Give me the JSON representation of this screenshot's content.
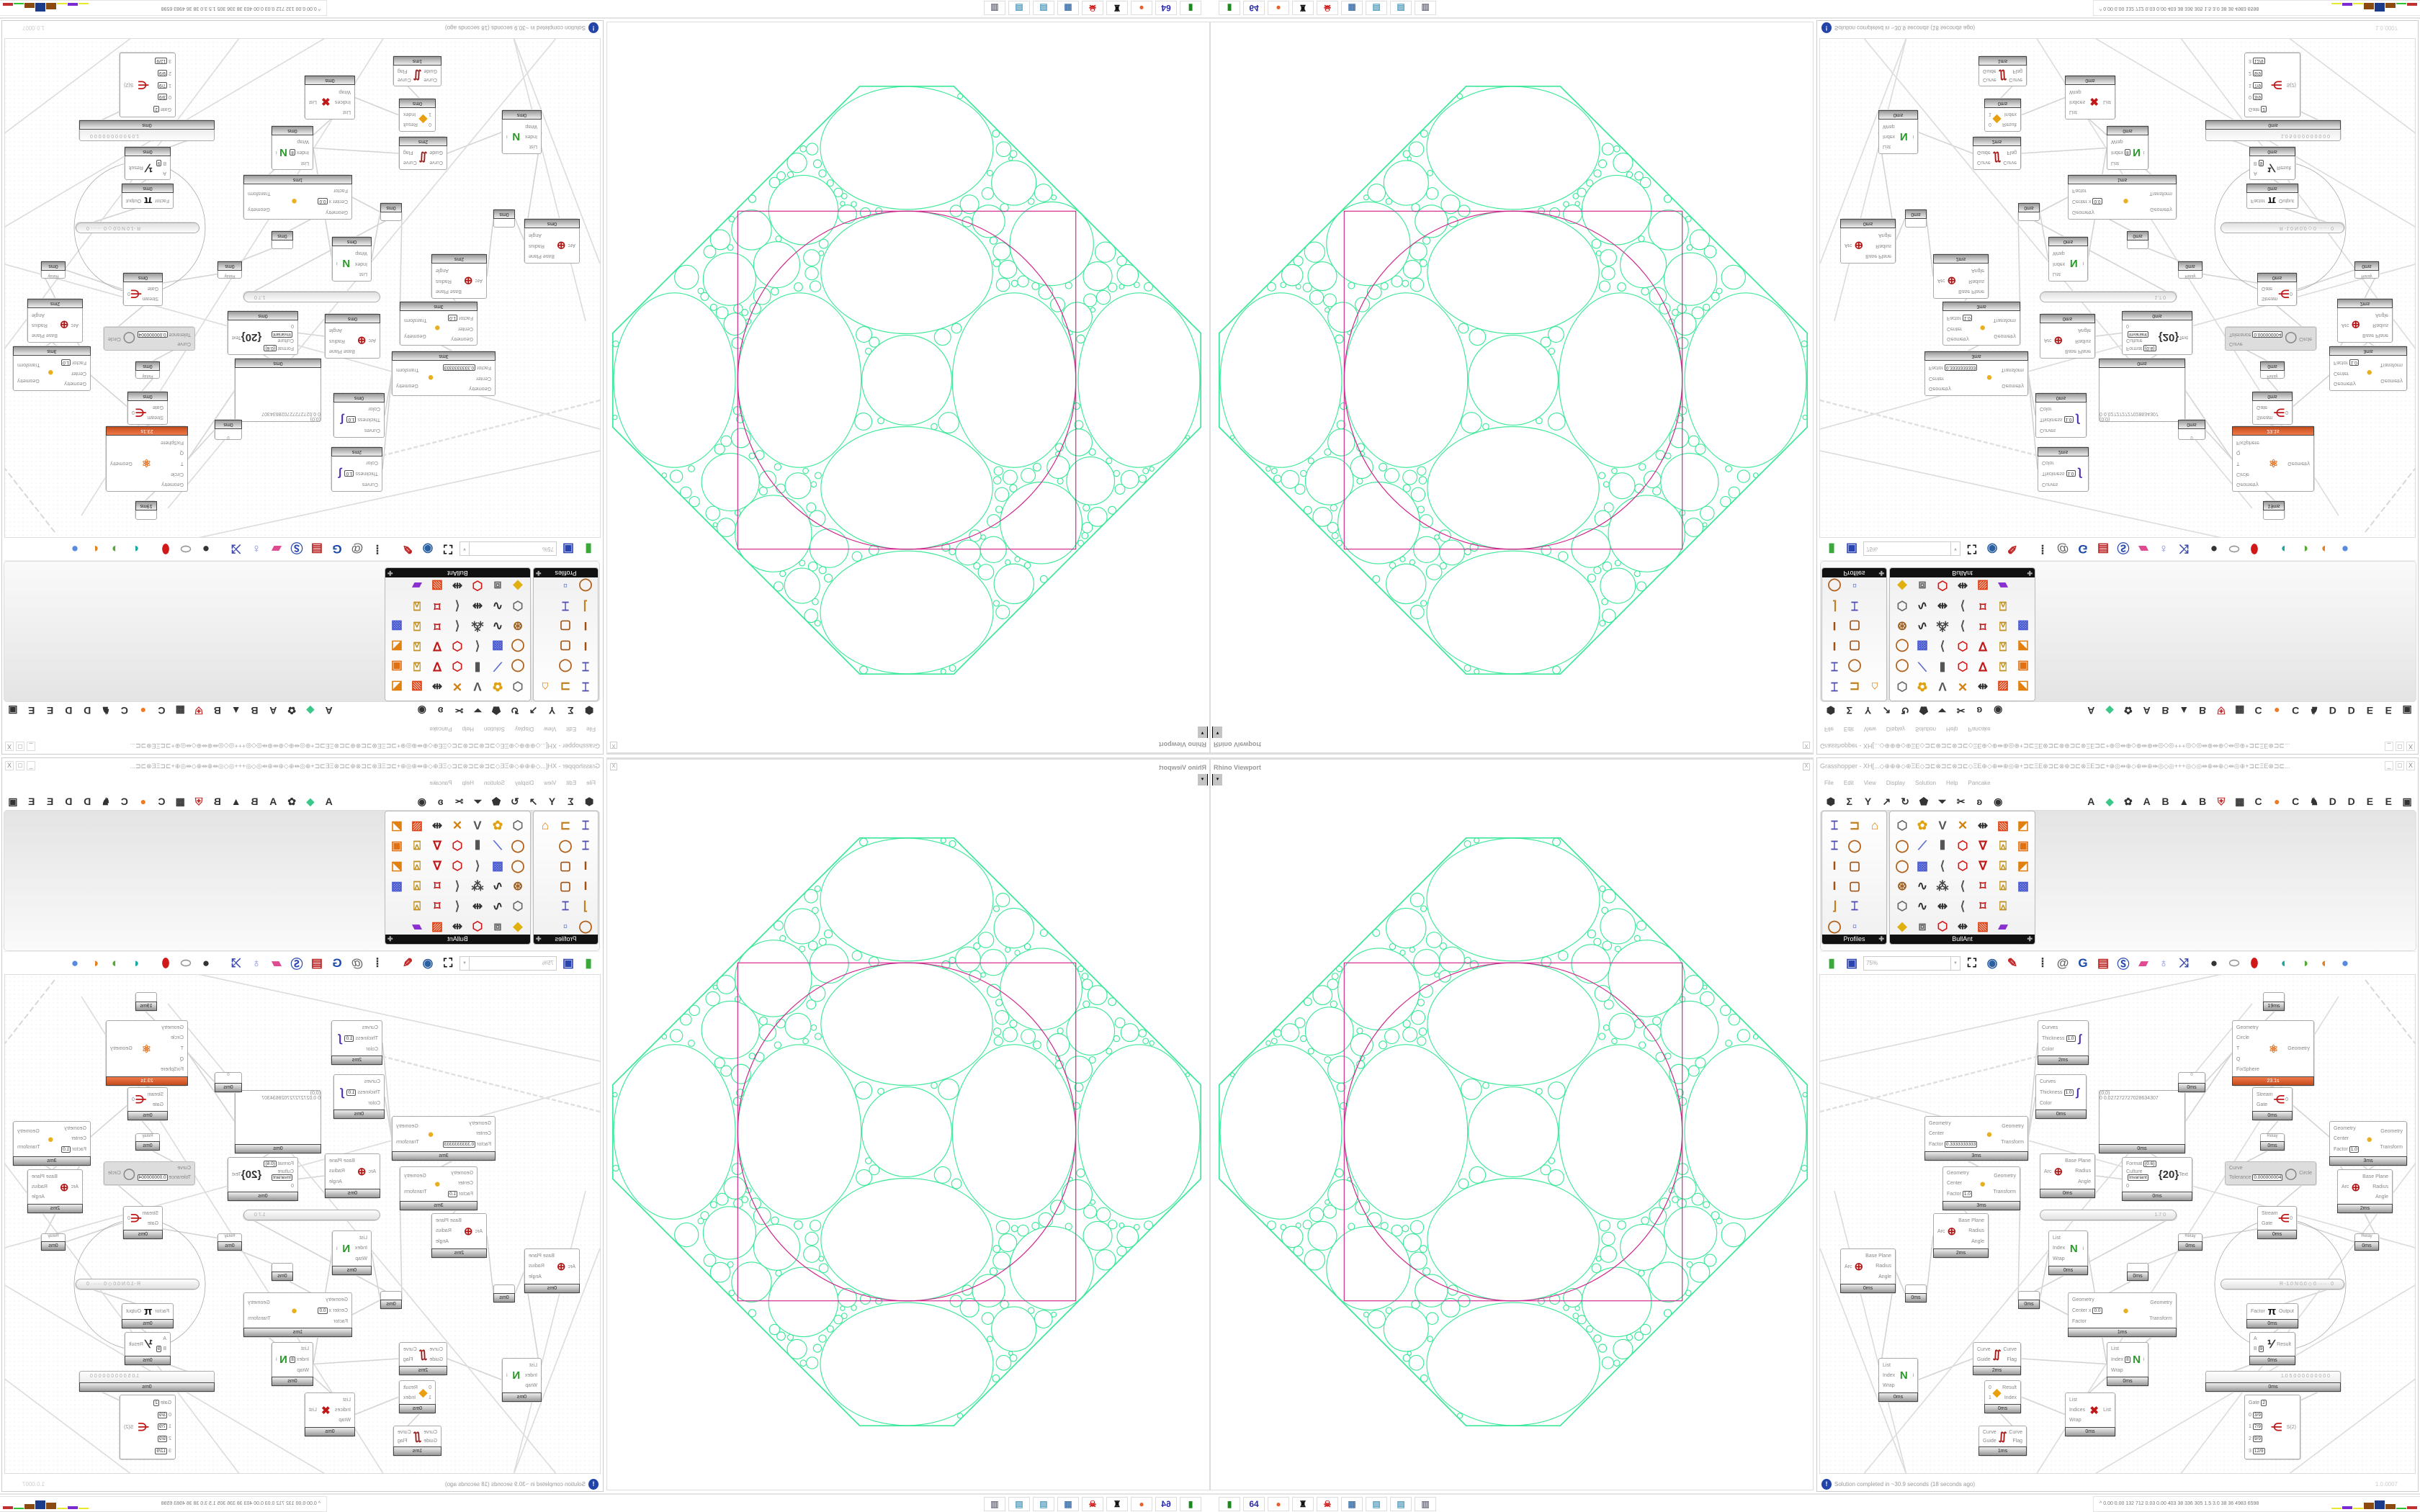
{
  "viewport": {
    "title": "Rhino Viewport",
    "close": "X",
    "dropdown": "▾",
    "line_color": "#3ee89a",
    "accent_color": "#d0208a"
  },
  "grasshopper": {
    "title": "Grasshopper - XH[...◇⊕⊕⊕◇⊕ΞΕ◇⊐⊏⊗⊐⊏⊗⊐⊏◇ΞΕ⊕◇⊕⇹⊕◎⊕+⊐⊏ΞΕ⊗⊐⊏⊗⊕⊐⊏⊗ΞΕ⊐⊏+⊕◎⇹⊕◇⊕⇹⊕⇹◎◇◎+++◎◇◎⇹⊕⇹⊕◇⇹◎⊕+⊐⊏ΞΕ⊗⊐⊏...",
    "window_buttons": [
      "_",
      "□",
      "X"
    ],
    "menu": [
      "File",
      "Edit",
      "View",
      "Display",
      "Solution",
      "Help",
      "Pancake"
    ],
    "tab_icons": [
      {
        "name": "hexagon-icon",
        "g": "⬢"
      },
      {
        "name": "sigma-icon",
        "g": "Σ"
      },
      {
        "name": "fork-icon",
        "g": "Y"
      },
      {
        "name": "arrow-icon",
        "g": "↗"
      },
      {
        "name": "loop-icon",
        "g": "↻"
      },
      {
        "name": "pentagon-icon",
        "g": "⬟"
      },
      {
        "name": "triangle-icon",
        "g": "⏷"
      },
      {
        "name": "scissors-icon",
        "g": "✂"
      },
      {
        "name": "swirl-icon",
        "g": "ʚ"
      },
      {
        "name": "eye-icon",
        "g": "◉"
      },
      {
        "name": "spacer",
        "g": ""
      },
      {
        "name": "spacer",
        "g": ""
      },
      {
        "name": "spacer",
        "g": ""
      },
      {
        "name": "spacer",
        "g": ""
      },
      {
        "name": "letter-a-icon",
        "g": "A"
      },
      {
        "name": "crystal-icon",
        "g": "◆"
      },
      {
        "name": "gear-flower-icon",
        "g": "✿"
      },
      {
        "name": "letter-a-icon",
        "g": "A"
      },
      {
        "name": "letter-b-icon",
        "g": "B"
      },
      {
        "name": "mountain-icon",
        "g": "▲"
      },
      {
        "name": "letter-b-icon",
        "g": "B"
      },
      {
        "name": "shield-icon",
        "g": "⛨"
      },
      {
        "name": "grid-icon",
        "g": "▦"
      },
      {
        "name": "letter-c-icon",
        "g": "C"
      },
      {
        "name": "orange-dot-icon",
        "g": "●"
      },
      {
        "name": "letter-c-icon",
        "g": "C"
      },
      {
        "name": "rooster-icon",
        "g": "♞"
      },
      {
        "name": "letter-d-icon",
        "g": "D"
      },
      {
        "name": "letter-d-icon",
        "g": "D"
      },
      {
        "name": "letter-e-icon",
        "g": "E"
      },
      {
        "name": "letter-e-icon",
        "g": "E"
      },
      {
        "name": "matrix-icon",
        "g": "▣"
      }
    ],
    "palettes": [
      {
        "label": "Profiles",
        "cols": 3,
        "icons": [
          "ibeam-label",
          "c-channel",
          "hat-section",
          "ibeam-label",
          "ring",
          "",
          "i-section",
          "rect-hollow",
          "",
          "i-section",
          "rect-hollow",
          "",
          "angle",
          "ibeam-label",
          "",
          "ring",
          "small-squares",
          ""
        ]
      },
      {
        "label": "BullAnt",
        "cols": 7,
        "icons": [
          "box",
          "flower",
          "v-lines",
          "tri-point",
          "dim-arrows",
          "sheet-red",
          "sheet-gradient",
          "ring",
          "plane-blue",
          "columns",
          "red-hex",
          "v-red",
          "lock-frame",
          "frame-orange",
          "ring",
          "cube-blue",
          "polyline",
          "red-hex",
          "v-red",
          "lock-frame",
          "sheet-gradient",
          "sphere-ring",
          "curve",
          "star-dots",
          "polyline",
          "frame-red",
          "lock-frame",
          "cube-blue",
          "box",
          "curve",
          "dim-arrows",
          "polyline",
          "frame-red",
          "lock-frame",
          "",
          "diamond-yellow",
          "panel-frame",
          "red-hex",
          "dim-arrows",
          "sheet-red",
          "rainbow",
          ""
        ]
      }
    ],
    "canvas_toolbar": {
      "zoom": "75%",
      "icons": [
        {
          "name": "new-file-icon",
          "g": "▮",
          "c": "#3aa83a"
        },
        {
          "name": "save-icon",
          "g": "▣",
          "c": "#2a44b0"
        },
        {
          "name": "zoom-field",
          "g": ""
        },
        {
          "name": "zoom-extents-icon",
          "g": "⛶",
          "c": "#111"
        },
        {
          "name": "preview-eye-icon",
          "g": "◉",
          "c": "#2a5fa0"
        },
        {
          "name": "sketch-icon",
          "g": "✎",
          "c": "#c02020"
        },
        {
          "name": "bracket-icon",
          "g": "⦙",
          "c": "#333"
        },
        {
          "name": "at-icon",
          "g": "@",
          "c": "#666"
        },
        {
          "name": "gha-icon",
          "g": "G",
          "c": "#1b4aa8"
        },
        {
          "name": "window-icon",
          "g": "▤",
          "c": "#b22"
        },
        {
          "name": "search-icon",
          "g": "Ⓢ",
          "c": "#2a4ab0"
        },
        {
          "name": "package-icon",
          "g": "▰",
          "c": "#e04a90"
        },
        {
          "name": "bulb-icon",
          "g": "♁",
          "c": "#7a8ae0"
        },
        {
          "name": "twist-icon",
          "g": "⤨",
          "c": "#3a4ab0"
        },
        {
          "name": "bomb-icon",
          "g": "●",
          "c": "#333"
        },
        {
          "name": "cylinder-icon",
          "g": "⬭",
          "c": "#999"
        },
        {
          "name": "red-cylinder-icon",
          "g": "⬮",
          "c": "#d01818"
        },
        {
          "name": "teal-shape-icon",
          "g": "◐",
          "c": "#18a8a0"
        },
        {
          "name": "green-shape-icon",
          "g": "◑",
          "c": "#58a838"
        },
        {
          "name": "orange-sphere-icon",
          "g": "◐",
          "c": "#e08020"
        },
        {
          "name": "blue-sphere-icon",
          "g": "●",
          "c": "#5a8ae0"
        }
      ]
    },
    "nodes": [
      {
        "t": "comp",
        "in": [
          "Curves",
          [
            "Thickness",
            "1.0"
          ],
          "Color"
        ],
        "out": [],
        "ico": "∫",
        "ic": "#4a2ab0",
        "ft": "2ms"
      },
      {
        "t": "comp",
        "in": [
          "Curves",
          [
            "Thickness",
            "1.0"
          ],
          "Color"
        ],
        "out": [],
        "ico": "∫",
        "ic": "#4a2ab0",
        "ft": "0ms"
      },
      {
        "t": "comp",
        "in": [
          "Geometry",
          "Center",
          [
            "Factor",
            "0.3333333333"
          ]
        ],
        "out": [
          "Geometry",
          "Transform"
        ],
        "ico": "●",
        "ic": "#e8b020",
        "ft": "3ms"
      },
      {
        "t": "comp",
        "in": [
          "Geometry",
          "Center",
          [
            "Factor",
            "1.0"
          ]
        ],
        "out": [
          "Geometry",
          "Transform"
        ],
        "ico": "●",
        "ic": "#e8b020",
        "ft": "3ms"
      },
      {
        "t": "comp",
        "in": [
          "Arc"
        ],
        "out": [
          "Base Plane",
          "Radius",
          "Angle"
        ],
        "ico": "⊕",
        "ic": "#b01818",
        "ft": "2ms"
      },
      {
        "t": "comp",
        "in": [
          "Arc"
        ],
        "out": [
          "Base Plane",
          "Radius",
          "Angle"
        ],
        "ico": "⊕",
        "ic": "#b01818",
        "ft": "0ms"
      },
      {
        "t": "relay",
        "ft": "0ms"
      },
      {
        "t": "relay",
        "ft": "0ms"
      },
      {
        "t": "comp",
        "in": [
          "Arc"
        ],
        "out": [
          "Base Plane",
          "Radius",
          "Angle"
        ],
        "ico": "⊕",
        "ic": "#b01818",
        "ft": "0ms"
      },
      {
        "t": "comp",
        "in": [
          [
            "Format",
            "{0.6}"
          ],
          [
            "Culture",
            "Invariant"
          ],
          "0"
        ],
        "out": [
          "Text"
        ],
        "ico": "{20}",
        "ic": "#333",
        "ft": "0ms"
      },
      {
        "t": "panel",
        "hd": "(0;0)",
        "ct": "0  0.027272727028634307",
        "ft": "0ms"
      },
      {
        "t": "relay",
        "label": "0",
        "ft": "0ms"
      },
      {
        "t": "comp",
        "in": [
          "Geometry",
          "Circle",
          "T",
          "Q",
          "FixSphere"
        ],
        "out": [
          "Geometry"
        ],
        "ico": "⚛",
        "ic": "#e07020",
        "ft": "23.1s",
        "orange": true
      },
      {
        "t": "relay",
        "ft": "19ms"
      },
      {
        "t": "comp",
        "in": [
          "Stream",
          "Gate"
        ],
        "out": [
          "0"
        ],
        "ico": "⋲",
        "ic": "#c01818",
        "ft": "0ms"
      },
      {
        "t": "relay",
        "label": "Relay",
        "ft": "0ms"
      },
      {
        "t": "comp",
        "in": [
          "Geometry",
          "Center",
          [
            "Factor",
            "1.0"
          ]
        ],
        "out": [
          "Geometry",
          "Transform"
        ],
        "ico": "●",
        "ic": "#e8b020",
        "ft": "3ms"
      },
      {
        "t": "comp",
        "dis": true,
        "in": [
          "Curve",
          [
            "Tolerance",
            "0.000000004"
          ]
        ],
        "out": [
          "Circle"
        ],
        "ico": "◯",
        "ic": "#888"
      },
      {
        "t": "comp",
        "in": [
          "Arc"
        ],
        "out": [
          "Base Plane",
          "Radius",
          "Angle"
        ],
        "ico": "⊕",
        "ic": "#b01818",
        "ft": "2ms"
      },
      {
        "t": "comp",
        "in": [
          "Stream",
          "Gate"
        ],
        "out": [
          "0"
        ],
        "ico": "⋲",
        "ic": "#c01818",
        "ft": "0ms"
      },
      {
        "t": "relay",
        "label": "Relay",
        "ft": "0ms"
      },
      {
        "t": "relay",
        "label": "Relay",
        "ft": "0ms"
      },
      {
        "t": "slider",
        "v": "1.7  0"
      },
      {
        "t": "comp",
        "in": [
          "List",
          "Index",
          "Wrap"
        ],
        "out": [
          "i"
        ],
        "ico": "N",
        "ic": "#2a9a2a",
        "ft": "0ms"
      },
      {
        "t": "relay",
        "ft": "0ms"
      },
      {
        "t": "slider",
        "v": "R -1.0  N 0.0  ◇ 0  ·······  0"
      },
      {
        "t": "comp",
        "in": [
          "Factor"
        ],
        "out": [
          "Output"
        ],
        "ico": "π",
        "ic": "#111",
        "ft": "0ms"
      },
      {
        "t": "comp",
        "in": [
          "A",
          [
            "B",
            "9"
          ]
        ],
        "out": [
          "Result"
        ],
        "ico": "⅟",
        "ic": "#333",
        "ft": "0ms"
      },
      {
        "t": "comp",
        "in": [
          "Geometry",
          [
            "Center x",
            "0.0"
          ],
          "Factor"
        ],
        "out": [
          "Geometry",
          "Transform"
        ],
        "ico": "●",
        "ic": "#e8b020",
        "ft": "1ms"
      },
      {
        "t": "comp",
        "in": [
          "Curve",
          "Guide"
        ],
        "out": [
          "Curve",
          "Flag"
        ],
        "ico": "∬",
        "ic": "#a01818",
        "ft": "2ms"
      },
      {
        "t": "comp",
        "in": [
          "List",
          "Index",
          "Wrap"
        ],
        "out": [
          "i"
        ],
        "ico": "N",
        "ic": "#2a9a2a",
        "ft": "0ms"
      },
      {
        "t": "comp",
        "in": [
          "List",
          [
            "Index",
            "8"
          ],
          "Wrap"
        ],
        "out": [
          "i"
        ],
        "ico": "N",
        "ic": "#2a9a2a",
        "ft": "0ms"
      },
      {
        "t": "comp",
        "in": [
          "0",
          "1"
        ],
        "out": [
          "Result",
          "Index"
        ],
        "ico": "◆",
        "ic": "#e8a010",
        "ft": "0ms"
      },
      {
        "t": "slider",
        "v": "1.0  5 0 0 0 0 0 0 0 0 0",
        "ft": "0ms"
      },
      {
        "t": "comp",
        "in": [
          "List",
          "Indices",
          "Wrap"
        ],
        "out": [
          "List"
        ],
        "ico": "✖",
        "ic": "#c01818",
        "ft": "0ms"
      },
      {
        "t": "comp",
        "in": [
          "Curve",
          "Guide"
        ],
        "out": [
          "Curve",
          "Flag"
        ],
        "ico": "∬",
        "ic": "#a01818",
        "ft": "1ms"
      },
      {
        "t": "comp",
        "in": [
          [
            "Gate",
            "2"
          ],
          [
            "0",
            "3/9"
          ],
          [
            "1",
            "7/9"
          ],
          [
            "2",
            "9/9"
          ],
          [
            "3",
            "12/9"
          ]
        ],
        "out": [
          "S(2)"
        ],
        "ico": "⋲",
        "ic": "#c01818"
      }
    ],
    "status": {
      "text": "Solution completed in ~30.9 seconds (18 seconds ago)",
      "version": "1.0.0007"
    }
  },
  "taskbar": {
    "apps": [
      {
        "name": "battery-app-icon",
        "g": "▮",
        "c": "#1a8a1a"
      },
      {
        "name": "floppy-64-icon",
        "g": "64",
        "c": "#2a2ab0"
      },
      {
        "name": "firefox-icon",
        "g": "●",
        "c": "#e8602a"
      },
      {
        "name": "rhino-icon",
        "g": "♜",
        "c": "#111"
      },
      {
        "name": "skull-app-icon",
        "g": "☠",
        "c": "#d01818"
      },
      {
        "name": "calculator-icon",
        "g": "▦",
        "c": "#4a7ab0"
      },
      {
        "name": "notepad-icon",
        "g": "▤",
        "c": "#5aa0c0"
      },
      {
        "name": "notepad-icon",
        "g": "▤",
        "c": "#5aa0c0"
      },
      {
        "name": "scroll-icon",
        "g": "▥",
        "c": "#778"
      }
    ],
    "stats": "^  0.00 0.00 132  712  0.03 0.00  403   38   336  305   1.5   3.0   38    36   4983 6598",
    "bar_colors": [
      "#e8e830",
      "#7a2ad0",
      "#e8e830",
      "#8a4a10",
      "#1a3a8a",
      "#8a4a10",
      "#30c030",
      "#c03030"
    ]
  }
}
